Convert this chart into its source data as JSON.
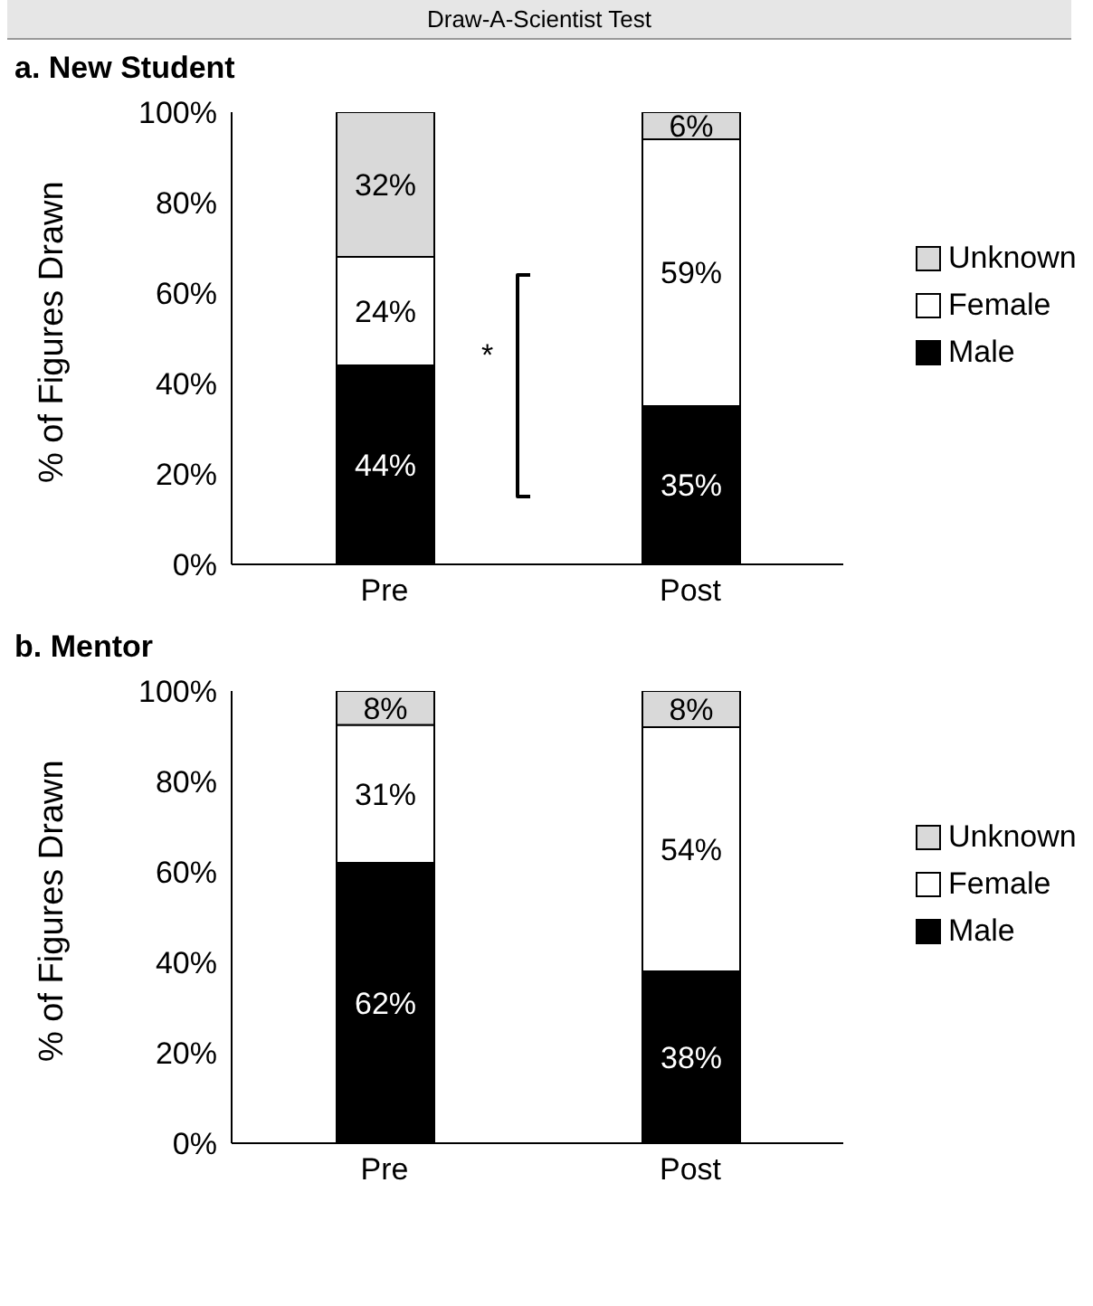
{
  "chart_data": [
    {
      "type": "bar",
      "title": "Draw-A-Scientist Test",
      "subtitle": "a. New Student",
      "ylabel": "% of Figures Drawn",
      "categories": [
        "Pre",
        "Post"
      ],
      "stacked": true,
      "ylim": [
        0,
        100
      ],
      "yticks": [
        {
          "value": 0,
          "label": "0%"
        },
        {
          "value": 20,
          "label": "20%"
        },
        {
          "value": 40,
          "label": "40%"
        },
        {
          "value": 60,
          "label": "60%"
        },
        {
          "value": 80,
          "label": "80%"
        },
        {
          "value": 100,
          "label": "100%"
        }
      ],
      "legend": "right",
      "grid": false,
      "annotations": [
        "*"
      ],
      "series": [
        {
          "name": "Male",
          "color": "#000000",
          "values": [
            44,
            35
          ],
          "value_labels": [
            "44%",
            "35%"
          ]
        },
        {
          "name": "Female",
          "color": "#ffffff",
          "values": [
            24,
            59
          ],
          "value_labels": [
            "24%",
            "59%"
          ]
        },
        {
          "name": "Unknown",
          "color": "#d9d9d9",
          "values": [
            32,
            6
          ],
          "value_labels": [
            "32%",
            "6%"
          ]
        }
      ]
    },
    {
      "type": "bar",
      "title": "b. Mentor",
      "ylabel": "% of Figures Drawn",
      "categories": [
        "Pre",
        "Post"
      ],
      "stacked": true,
      "ylim": [
        0,
        100
      ],
      "yticks": [
        {
          "value": 0,
          "label": "0%"
        },
        {
          "value": 20,
          "label": "20%"
        },
        {
          "value": 40,
          "label": "40%"
        },
        {
          "value": 60,
          "label": "60%"
        },
        {
          "value": 80,
          "label": "80%"
        },
        {
          "value": 100,
          "label": "100%"
        }
      ],
      "legend": "right",
      "grid": false,
      "series": [
        {
          "name": "Male",
          "color": "#000000",
          "values": [
            62,
            38
          ],
          "value_labels": [
            "62%",
            "38%"
          ]
        },
        {
          "name": "Female",
          "color": "#ffffff",
          "values": [
            30.5,
            54
          ],
          "value_labels": [
            "31%",
            "54%"
          ]
        },
        {
          "name": "Unknown",
          "color": "#d9d9d9",
          "values": [
            7.5,
            8
          ],
          "value_labels": [
            "8%",
            "8%"
          ]
        }
      ]
    }
  ]
}
